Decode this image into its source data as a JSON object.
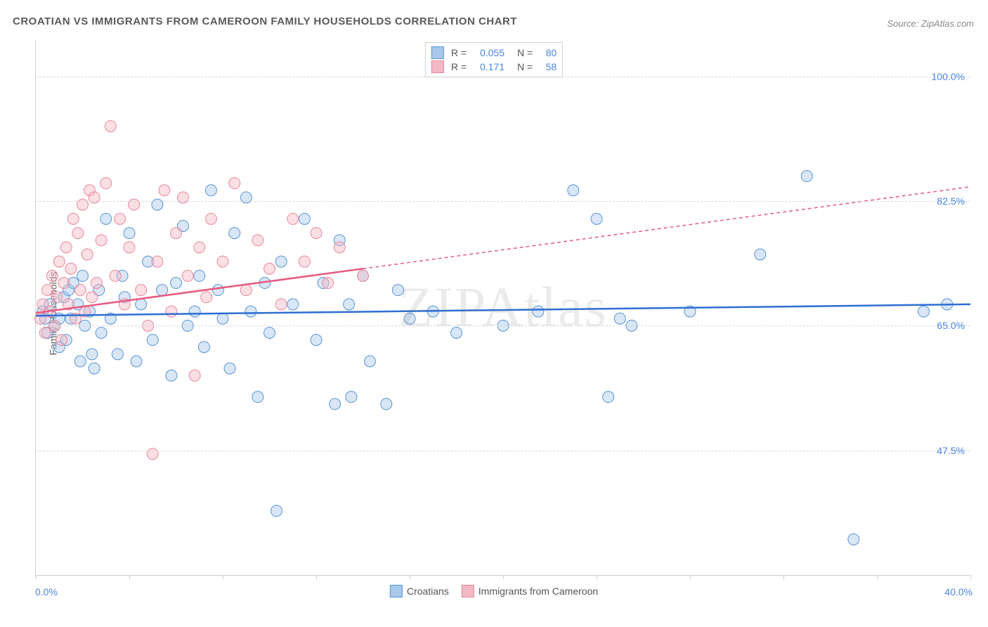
{
  "title": "CROATIAN VS IMMIGRANTS FROM CAMEROON FAMILY HOUSEHOLDS CORRELATION CHART",
  "source": "Source: ZipAtlas.com",
  "ylabel": "Family Households",
  "watermark": "ZIPAtlas",
  "chart": {
    "type": "scatter",
    "background_color": "#ffffff",
    "grid_color": "#d8d8d8",
    "axis_color": "#d0d0d0",
    "label_fontsize": 14,
    "title_fontsize": 15,
    "title_color": "#5a5a5a",
    "tick_color": "#4a86e8",
    "xlim": [
      0,
      40
    ],
    "ylim": [
      30,
      105
    ],
    "xtick_positions": [
      0,
      4,
      8,
      12,
      16,
      20,
      24,
      28,
      32,
      36,
      40
    ],
    "xtick_labels": {
      "0": "0.0%",
      "40": "40.0%"
    },
    "ytick_positions": [
      47.5,
      65.0,
      82.5,
      100.0
    ],
    "ytick_labels": [
      "47.5%",
      "65.0%",
      "82.5%",
      "100.0%"
    ],
    "marker_radius": 8,
    "marker_opacity": 0.45,
    "line_width": 2.5,
    "series": [
      {
        "name": "Croatians",
        "fill_color": "#a8c8ec",
        "stroke_color": "#5a95d6",
        "line_color": "#2d6fd2",
        "R": "0.055",
        "N": "80",
        "points": [
          [
            0.3,
            67
          ],
          [
            0.4,
            66
          ],
          [
            0.5,
            64
          ],
          [
            0.6,
            68
          ],
          [
            0.8,
            65
          ],
          [
            1.0,
            66
          ],
          [
            1.0,
            62
          ],
          [
            1.2,
            69
          ],
          [
            1.3,
            63
          ],
          [
            1.4,
            70
          ],
          [
            1.5,
            66
          ],
          [
            1.6,
            71
          ],
          [
            1.8,
            68
          ],
          [
            1.9,
            60
          ],
          [
            2.0,
            72
          ],
          [
            2.1,
            65
          ],
          [
            2.3,
            67
          ],
          [
            2.4,
            61
          ],
          [
            2.5,
            59
          ],
          [
            2.7,
            70
          ],
          [
            2.8,
            64
          ],
          [
            3.0,
            80
          ],
          [
            3.2,
            66
          ],
          [
            3.5,
            61
          ],
          [
            3.7,
            72
          ],
          [
            3.8,
            69
          ],
          [
            4.0,
            78
          ],
          [
            4.3,
            60
          ],
          [
            4.5,
            68
          ],
          [
            4.8,
            74
          ],
          [
            5.0,
            63
          ],
          [
            5.2,
            82
          ],
          [
            5.4,
            70
          ],
          [
            5.8,
            58
          ],
          [
            6.0,
            71
          ],
          [
            6.3,
            79
          ],
          [
            6.5,
            65
          ],
          [
            6.8,
            67
          ],
          [
            7.0,
            72
          ],
          [
            7.2,
            62
          ],
          [
            7.5,
            84
          ],
          [
            7.8,
            70
          ],
          [
            8.0,
            66
          ],
          [
            8.3,
            59
          ],
          [
            8.5,
            78
          ],
          [
            9.0,
            83
          ],
          [
            9.2,
            67
          ],
          [
            9.5,
            55
          ],
          [
            9.8,
            71
          ],
          [
            10.0,
            64
          ],
          [
            10.3,
            39
          ],
          [
            10.5,
            74
          ],
          [
            11.0,
            68
          ],
          [
            11.5,
            80
          ],
          [
            12.0,
            63
          ],
          [
            12.3,
            71
          ],
          [
            12.8,
            54
          ],
          [
            13.0,
            77
          ],
          [
            13.4,
            68
          ],
          [
            13.5,
            55
          ],
          [
            14.0,
            72
          ],
          [
            14.3,
            60
          ],
          [
            15.0,
            54
          ],
          [
            15.5,
            70
          ],
          [
            16.0,
            66
          ],
          [
            17.0,
            67
          ],
          [
            18.0,
            64
          ],
          [
            20.0,
            65
          ],
          [
            21.5,
            67
          ],
          [
            23.0,
            84
          ],
          [
            24.0,
            80
          ],
          [
            24.5,
            55
          ],
          [
            25.0,
            66
          ],
          [
            25.5,
            65
          ],
          [
            28.0,
            67
          ],
          [
            31.0,
            75
          ],
          [
            33.0,
            86
          ],
          [
            35.0,
            35
          ],
          [
            38.0,
            67
          ],
          [
            39.0,
            68
          ]
        ],
        "trend": {
          "x1": 0,
          "y1": 66.4,
          "x2": 40,
          "y2": 68.0,
          "dash": false
        }
      },
      {
        "name": "Immigrants from Cameroon",
        "fill_color": "#f4b8c4",
        "stroke_color": "#e8889c",
        "line_color": "#e85a80",
        "R": "0.171",
        "N": "58",
        "points": [
          [
            0.2,
            66
          ],
          [
            0.3,
            68
          ],
          [
            0.4,
            64
          ],
          [
            0.5,
            70
          ],
          [
            0.6,
            67
          ],
          [
            0.7,
            72
          ],
          [
            0.8,
            65
          ],
          [
            0.9,
            69
          ],
          [
            1.0,
            74
          ],
          [
            1.1,
            63
          ],
          [
            1.2,
            71
          ],
          [
            1.3,
            76
          ],
          [
            1.4,
            68
          ],
          [
            1.5,
            73
          ],
          [
            1.6,
            80
          ],
          [
            1.7,
            66
          ],
          [
            1.8,
            78
          ],
          [
            1.9,
            70
          ],
          [
            2.0,
            82
          ],
          [
            2.1,
            67
          ],
          [
            2.2,
            75
          ],
          [
            2.3,
            84
          ],
          [
            2.4,
            69
          ],
          [
            2.5,
            83
          ],
          [
            2.6,
            71
          ],
          [
            2.8,
            77
          ],
          [
            3.0,
            85
          ],
          [
            3.2,
            93
          ],
          [
            3.4,
            72
          ],
          [
            3.6,
            80
          ],
          [
            3.8,
            68
          ],
          [
            4.0,
            76
          ],
          [
            4.2,
            82
          ],
          [
            4.5,
            70
          ],
          [
            4.8,
            65
          ],
          [
            5.0,
            47
          ],
          [
            5.2,
            74
          ],
          [
            5.5,
            84
          ],
          [
            5.8,
            67
          ],
          [
            6.0,
            78
          ],
          [
            6.3,
            83
          ],
          [
            6.5,
            72
          ],
          [
            6.8,
            58
          ],
          [
            7.0,
            76
          ],
          [
            7.3,
            69
          ],
          [
            7.5,
            80
          ],
          [
            8.0,
            74
          ],
          [
            8.5,
            85
          ],
          [
            9.0,
            70
          ],
          [
            9.5,
            77
          ],
          [
            10.0,
            73
          ],
          [
            10.5,
            68
          ],
          [
            11.0,
            80
          ],
          [
            11.5,
            74
          ],
          [
            12.0,
            78
          ],
          [
            12.5,
            71
          ],
          [
            13.0,
            76
          ],
          [
            14.0,
            72
          ]
        ],
        "trend": {
          "x1": 0,
          "y1": 66.8,
          "x2": 14,
          "y2": 73.0,
          "dash": false,
          "ext_x2": 40,
          "ext_y2": 84.5
        }
      }
    ]
  },
  "legend": {
    "bottom": [
      {
        "label": "Croatians",
        "fill": "#a8c8ec",
        "stroke": "#5a95d6"
      },
      {
        "label": "Immigrants from Cameroon",
        "fill": "#f4b8c4",
        "stroke": "#e8889c"
      }
    ]
  }
}
